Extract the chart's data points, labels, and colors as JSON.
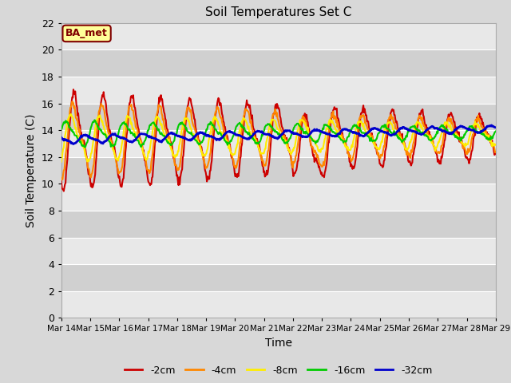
{
  "title": "Soil Temperatures Set C",
  "xlabel": "Time",
  "ylabel": "Soil Temperature (C)",
  "ylim": [
    0,
    22
  ],
  "yticks": [
    0,
    2,
    4,
    6,
    8,
    10,
    12,
    14,
    16,
    18,
    20,
    22
  ],
  "bg_color": "#d8d8d8",
  "plot_bg_light": "#e8e8e8",
  "plot_bg_dark": "#d0d0d0",
  "grid_color": "#ffffff",
  "annotation_text": "BA_met",
  "annotation_bg": "#ffff99",
  "annotation_border": "#800000",
  "series_colors": {
    "-2cm": "#cc0000",
    "-4cm": "#ff8800",
    "-8cm": "#ffee00",
    "-16cm": "#00cc00",
    "-32cm": "#0000cc"
  },
  "series_lw": {
    "-2cm": 1.5,
    "-4cm": 1.5,
    "-8cm": 1.5,
    "-16cm": 1.5,
    "-32cm": 2.0
  },
  "x_tick_labels": [
    "Mar 14",
    "Mar 15",
    "Mar 16",
    "Mar 17",
    "Mar 18",
    "Mar 19",
    "Mar 20",
    "Mar 21",
    "Mar 22",
    "Mar 23",
    "Mar 24",
    "Mar 25",
    "Mar 26",
    "Mar 27",
    "Mar 28",
    "Mar 29"
  ],
  "n_days": 15,
  "series_order": [
    "-2cm",
    "-4cm",
    "-8cm",
    "-16cm",
    "-32cm"
  ]
}
